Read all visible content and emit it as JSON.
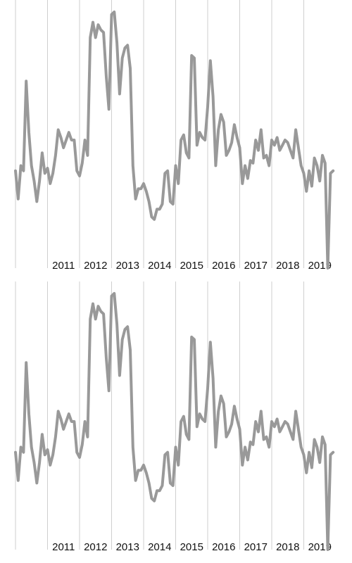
{
  "chart_data": [
    {
      "type": "line",
      "title": "",
      "xlabel": "",
      "ylabel": "",
      "x_ticks": [
        "2011",
        "2012",
        "2013",
        "2014",
        "2015",
        "2016",
        "2017",
        "2018",
        "2019"
      ],
      "xlim": [
        2010,
        2020
      ],
      "ylim": [
        0,
        100
      ],
      "grid": "vertical",
      "legend": "none",
      "series": [
        {
          "color": "#999999",
          "x_start": 2010.0,
          "step": 0.08333,
          "values": [
            38,
            27,
            40,
            38,
            73,
            53,
            40,
            34,
            26,
            34,
            45,
            37,
            39,
            33,
            37,
            44,
            54,
            51,
            47,
            50,
            53,
            50,
            50,
            38,
            36,
            41,
            50,
            44,
            90,
            96,
            90,
            95,
            93,
            92,
            75,
            62,
            99,
            100,
            88,
            68,
            82,
            86,
            87,
            78,
            40,
            27,
            31,
            31,
            33,
            30,
            26,
            20,
            19,
            23,
            23,
            25,
            37,
            38,
            26,
            25,
            40,
            33,
            50,
            52,
            45,
            43,
            83,
            82,
            48,
            53,
            51,
            50,
            63,
            81,
            67,
            40,
            54,
            60,
            57,
            44,
            46,
            49,
            56,
            51,
            47,
            33,
            40,
            35,
            42,
            41,
            50,
            46,
            54,
            43,
            44,
            40,
            50,
            48,
            51,
            46,
            48,
            50,
            49,
            46,
            43,
            54,
            47,
            40,
            37,
            30,
            38,
            32,
            43,
            40,
            34,
            44,
            41,
            0,
            37,
            38
          ]
        }
      ]
    },
    {
      "type": "line",
      "title": "",
      "xlabel": "",
      "ylabel": "",
      "x_ticks": [
        "2011",
        "2012",
        "2013",
        "2014",
        "2015",
        "2016",
        "2017",
        "2018",
        "2019"
      ],
      "xlim": [
        2010,
        2020
      ],
      "ylim": [
        0,
        100
      ],
      "grid": "vertical",
      "legend": "none",
      "series": [
        {
          "color": "#999999",
          "x_start": 2010.0,
          "step": 0.08333,
          "values": [
            38,
            27,
            40,
            38,
            73,
            53,
            40,
            34,
            26,
            34,
            45,
            37,
            39,
            33,
            37,
            44,
            54,
            51,
            47,
            50,
            53,
            50,
            50,
            38,
            36,
            41,
            50,
            44,
            90,
            96,
            90,
            95,
            93,
            92,
            75,
            62,
            99,
            100,
            88,
            68,
            82,
            86,
            87,
            78,
            40,
            27,
            31,
            31,
            33,
            30,
            26,
            20,
            19,
            23,
            23,
            25,
            37,
            38,
            26,
            25,
            40,
            33,
            50,
            52,
            45,
            43,
            83,
            82,
            48,
            53,
            51,
            50,
            63,
            81,
            67,
            40,
            54,
            60,
            57,
            44,
            46,
            49,
            56,
            51,
            47,
            33,
            40,
            35,
            42,
            41,
            50,
            46,
            54,
            43,
            44,
            40,
            50,
            48,
            51,
            46,
            48,
            50,
            49,
            46,
            43,
            54,
            47,
            40,
            37,
            30,
            38,
            32,
            43,
            40,
            34,
            44,
            41,
            0,
            37,
            38
          ]
        }
      ]
    }
  ]
}
